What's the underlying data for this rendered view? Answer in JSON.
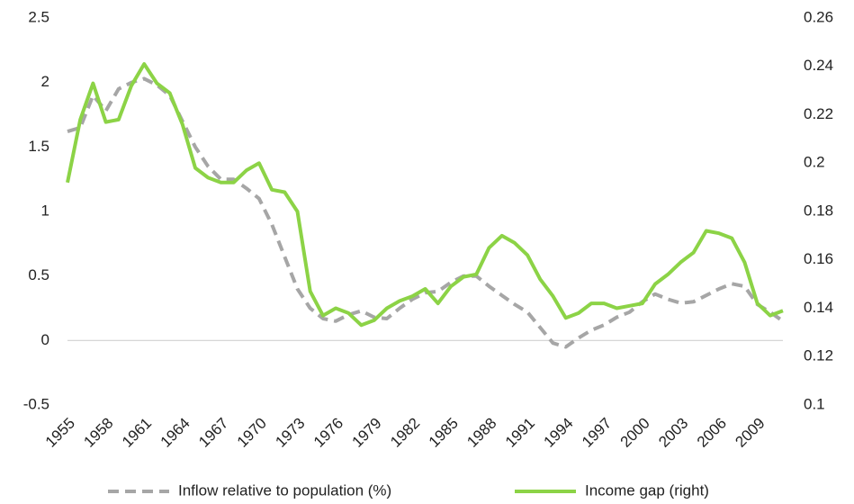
{
  "chart_data": {
    "type": "line",
    "x": [
      1955,
      1956,
      1957,
      1958,
      1959,
      1960,
      1961,
      1962,
      1963,
      1964,
      1965,
      1966,
      1967,
      1968,
      1969,
      1970,
      1971,
      1972,
      1973,
      1974,
      1975,
      1976,
      1977,
      1978,
      1979,
      1980,
      1981,
      1982,
      1983,
      1984,
      1985,
      1986,
      1987,
      1988,
      1989,
      1990,
      1991,
      1992,
      1993,
      1994,
      1995,
      1996,
      1997,
      1998,
      1999,
      2000,
      2001,
      2002,
      2003,
      2004,
      2005,
      2006,
      2007,
      2008,
      2009,
      2010,
      2011
    ],
    "xlim": [
      1955,
      2011
    ],
    "xticks": [
      1955,
      1958,
      1961,
      1964,
      1967,
      1970,
      1973,
      1976,
      1979,
      1982,
      1985,
      1988,
      1991,
      1994,
      1997,
      2000,
      2003,
      2006,
      2009
    ],
    "ylim": [
      -0.5,
      2.5
    ],
    "yticks": [
      -0.5,
      0,
      0.5,
      1,
      1.5,
      2,
      2.5
    ],
    "y2lim": [
      0.1,
      0.26
    ],
    "y2ticks": [
      0.1,
      0.12,
      0.14,
      0.16,
      0.18,
      0.2,
      0.22,
      0.24,
      0.26
    ],
    "zero_line": true,
    "legend": "bottom",
    "series": [
      {
        "name": "Inflow relative to population (%)",
        "color": "#a6a6a6",
        "style": "dashed",
        "values": [
          1.62,
          1.65,
          1.9,
          1.78,
          1.95,
          2.0,
          2.03,
          1.98,
          1.9,
          1.7,
          1.5,
          1.35,
          1.25,
          1.25,
          1.18,
          1.1,
          0.9,
          0.65,
          0.4,
          0.25,
          0.17,
          0.15,
          0.2,
          0.23,
          0.18,
          0.17,
          0.25,
          0.32,
          0.37,
          0.38,
          0.45,
          0.5,
          0.5,
          0.42,
          0.35,
          0.28,
          0.22,
          0.1,
          -0.02,
          -0.05,
          0.02,
          0.08,
          0.12,
          0.18,
          0.22,
          0.3,
          0.36,
          0.32,
          0.29,
          0.3,
          0.35,
          0.4,
          0.44,
          0.42,
          0.28,
          0.22,
          0.15
        ]
      },
      {
        "name": "Income gap (right)",
        "color": "#8cd346",
        "style": "solid",
        "axis": "y2",
        "values": [
          0.192,
          0.218,
          0.233,
          0.217,
          0.218,
          0.232,
          0.241,
          0.233,
          0.229,
          0.216,
          0.198,
          0.194,
          0.192,
          0.192,
          0.197,
          0.2,
          0.189,
          0.188,
          0.18,
          0.147,
          0.137,
          0.14,
          0.138,
          0.133,
          0.135,
          0.14,
          0.143,
          0.145,
          0.148,
          0.142,
          0.149,
          0.153,
          0.154,
          0.165,
          0.17,
          0.167,
          0.162,
          0.152,
          0.145,
          0.136,
          0.138,
          0.142,
          0.142,
          0.14,
          0.141,
          0.142,
          0.15,
          0.154,
          0.159,
          0.163,
          0.172,
          0.171,
          0.169,
          0.159,
          0.142,
          0.137,
          0.139
        ]
      }
    ]
  }
}
